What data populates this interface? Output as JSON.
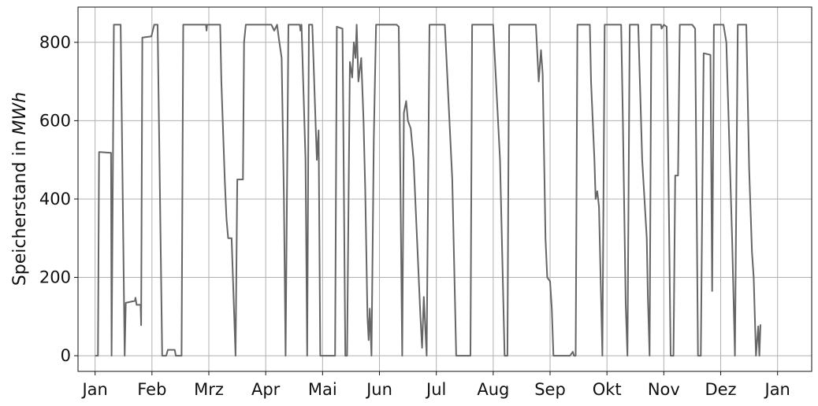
{
  "chart_data": {
    "type": "line",
    "title": "",
    "xlabel": "",
    "ylabel": "Speicherstand in MWh",
    "ylabel_parts": {
      "text": "Speicherstand in ",
      "unit": "MWh"
    },
    "xlim": [
      -0.3,
      12.6
    ],
    "ylim": [
      -40,
      890
    ],
    "grid": true,
    "legend": "none",
    "x_tick_values": [
      0,
      1,
      2,
      3,
      4,
      5,
      6,
      7,
      8,
      9,
      10,
      11,
      12
    ],
    "x_tick_labels": [
      "Jan",
      "Feb",
      "Mrz",
      "Apr",
      "Mai",
      "Jun",
      "Jul",
      "Aug",
      "Sep",
      "Okt",
      "Nov",
      "Dez",
      "Jan"
    ],
    "y_ticks": [
      0,
      200,
      400,
      600,
      800
    ],
    "series": [
      {
        "color": "#666666",
        "points": [
          [
            0.0,
            0
          ],
          [
            0.05,
            0
          ],
          [
            0.07,
            520
          ],
          [
            0.28,
            518
          ],
          [
            0.29,
            0
          ],
          [
            0.33,
            845
          ],
          [
            0.45,
            845
          ],
          [
            0.52,
            0
          ],
          [
            0.54,
            135
          ],
          [
            0.7,
            140
          ],
          [
            0.71,
            148
          ],
          [
            0.73,
            130
          ],
          [
            0.8,
            130
          ],
          [
            0.81,
            78
          ],
          [
            0.83,
            812
          ],
          [
            0.99,
            815
          ],
          [
            1.04,
            845
          ],
          [
            1.1,
            845
          ],
          [
            1.18,
            0
          ],
          [
            1.25,
            0
          ],
          [
            1.28,
            15
          ],
          [
            1.4,
            15
          ],
          [
            1.42,
            0
          ],
          [
            1.52,
            0
          ],
          [
            1.55,
            845
          ],
          [
            1.95,
            845
          ],
          [
            1.96,
            830
          ],
          [
            1.97,
            845
          ],
          [
            2.2,
            845
          ],
          [
            2.22,
            700
          ],
          [
            2.28,
            450
          ],
          [
            2.31,
            350
          ],
          [
            2.34,
            300
          ],
          [
            2.4,
            300
          ],
          [
            2.47,
            0
          ],
          [
            2.5,
            450
          ],
          [
            2.6,
            450
          ],
          [
            2.62,
            800
          ],
          [
            2.65,
            845
          ],
          [
            3.1,
            845
          ],
          [
            3.15,
            830
          ],
          [
            3.2,
            845
          ],
          [
            3.23,
            810
          ],
          [
            3.28,
            760
          ],
          [
            3.32,
            400
          ],
          [
            3.35,
            0
          ],
          [
            3.4,
            845
          ],
          [
            3.6,
            845
          ],
          [
            3.61,
            830
          ],
          [
            3.63,
            845
          ],
          [
            3.7,
            500
          ],
          [
            3.73,
            0
          ],
          [
            3.76,
            845
          ],
          [
            3.82,
            845
          ],
          [
            3.88,
            580
          ],
          [
            3.9,
            500
          ],
          [
            3.93,
            575
          ],
          [
            3.96,
            0
          ],
          [
            4.0,
            0
          ],
          [
            4.22,
            0
          ],
          [
            4.25,
            840
          ],
          [
            4.35,
            835
          ],
          [
            4.4,
            0
          ],
          [
            4.43,
            0
          ],
          [
            4.48,
            750
          ],
          [
            4.52,
            710
          ],
          [
            4.55,
            800
          ],
          [
            4.58,
            760
          ],
          [
            4.6,
            845
          ],
          [
            4.63,
            700
          ],
          [
            4.68,
            760
          ],
          [
            4.72,
            600
          ],
          [
            4.75,
            420
          ],
          [
            4.79,
            100
          ],
          [
            4.81,
            40
          ],
          [
            4.83,
            120
          ],
          [
            4.86,
            0
          ],
          [
            4.9,
            550
          ],
          [
            4.94,
            845
          ],
          [
            5.25,
            845
          ],
          [
            5.3,
            845
          ],
          [
            5.34,
            840
          ],
          [
            5.4,
            0
          ],
          [
            5.43,
            620
          ],
          [
            5.47,
            650
          ],
          [
            5.5,
            600
          ],
          [
            5.55,
            580
          ],
          [
            5.6,
            500
          ],
          [
            5.72,
            100
          ],
          [
            5.75,
            20
          ],
          [
            5.78,
            150
          ],
          [
            5.83,
            0
          ],
          [
            5.88,
            845
          ],
          [
            6.15,
            845
          ],
          [
            6.28,
            450
          ],
          [
            6.35,
            0
          ],
          [
            6.55,
            0
          ],
          [
            6.6,
            0
          ],
          [
            6.63,
            845
          ],
          [
            6.8,
            845
          ],
          [
            6.85,
            845
          ],
          [
            7.0,
            845
          ],
          [
            7.12,
            500
          ],
          [
            7.2,
            0
          ],
          [
            7.25,
            0
          ],
          [
            7.28,
            845
          ],
          [
            7.75,
            845
          ],
          [
            7.8,
            700
          ],
          [
            7.84,
            780
          ],
          [
            7.87,
            720
          ],
          [
            7.92,
            300
          ],
          [
            7.95,
            200
          ],
          [
            8.0,
            190
          ],
          [
            8.03,
            120
          ],
          [
            8.06,
            0
          ],
          [
            8.35,
            0
          ],
          [
            8.4,
            10
          ],
          [
            8.42,
            0
          ],
          [
            8.45,
            0
          ],
          [
            8.48,
            845
          ],
          [
            8.7,
            845
          ],
          [
            8.72,
            700
          ],
          [
            8.78,
            500
          ],
          [
            8.8,
            400
          ],
          [
            8.83,
            420
          ],
          [
            8.86,
            380
          ],
          [
            8.92,
            0
          ],
          [
            8.96,
            845
          ],
          [
            9.25,
            845
          ],
          [
            9.28,
            600
          ],
          [
            9.33,
            130
          ],
          [
            9.36,
            0
          ],
          [
            9.4,
            845
          ],
          [
            9.45,
            845
          ],
          [
            9.55,
            845
          ],
          [
            9.62,
            500
          ],
          [
            9.7,
            300
          ],
          [
            9.72,
            150
          ],
          [
            9.75,
            0
          ],
          [
            9.78,
            845
          ],
          [
            9.95,
            845
          ],
          [
            9.96,
            835
          ],
          [
            10.0,
            845
          ],
          [
            10.05,
            840
          ],
          [
            10.12,
            0
          ],
          [
            10.17,
            0
          ],
          [
            10.2,
            460
          ],
          [
            10.25,
            460
          ],
          [
            10.28,
            845
          ],
          [
            10.5,
            845
          ],
          [
            10.55,
            835
          ],
          [
            10.6,
            0
          ],
          [
            10.65,
            0
          ],
          [
            10.7,
            772
          ],
          [
            10.82,
            768
          ],
          [
            10.85,
            165
          ],
          [
            10.88,
            845
          ],
          [
            11.05,
            845
          ],
          [
            11.1,
            800
          ],
          [
            11.2,
            300
          ],
          [
            11.25,
            0
          ],
          [
            11.3,
            845
          ],
          [
            11.45,
            845
          ],
          [
            11.5,
            480
          ],
          [
            11.55,
            265
          ],
          [
            11.58,
            200
          ],
          [
            11.62,
            0
          ],
          [
            11.66,
            75
          ],
          [
            11.68,
            0
          ],
          [
            11.7,
            80
          ]
        ]
      }
    ]
  }
}
